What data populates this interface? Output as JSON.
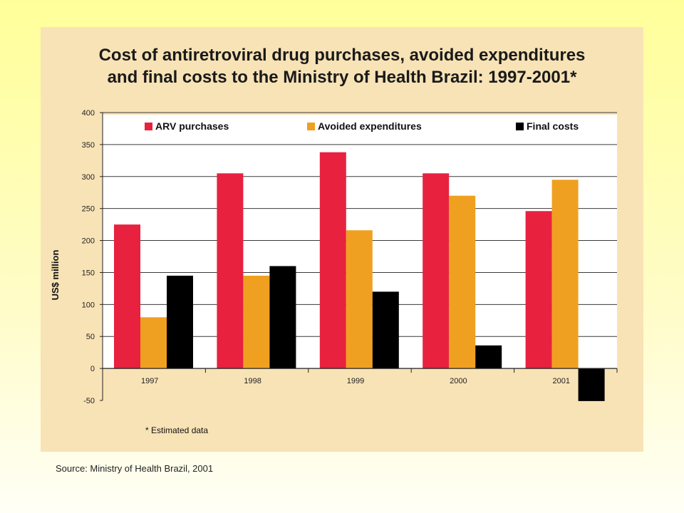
{
  "chart_data": {
    "type": "bar",
    "title_lines": [
      "Cost of antiretroviral drug purchases, avoided expenditures",
      "and final costs to the Ministry of Health Brazil: 1997-2001*"
    ],
    "ylabel": "US$ million",
    "xlabel": "",
    "ylim": [
      -50,
      400
    ],
    "yticks": [
      400,
      350,
      300,
      250,
      200,
      150,
      100,
      50,
      0,
      -50
    ],
    "categories": [
      "1997",
      "1998",
      "1999",
      "2000",
      "2001"
    ],
    "series": [
      {
        "name": "ARV purchases",
        "color": "#e8213f",
        "values": [
          225,
          305,
          338,
          305,
          246
        ]
      },
      {
        "name": "Avoided expenditures",
        "color": "#f0a020",
        "values": [
          80,
          145,
          216,
          270,
          295
        ]
      },
      {
        "name": "Final costs",
        "color": "#000000",
        "values": [
          145,
          160,
          120,
          36,
          -51
        ]
      }
    ],
    "grid": true,
    "legend_position": "top"
  },
  "footnote": "* Estimated data",
  "source": "Source: Ministry of Health Brazil, 2001"
}
